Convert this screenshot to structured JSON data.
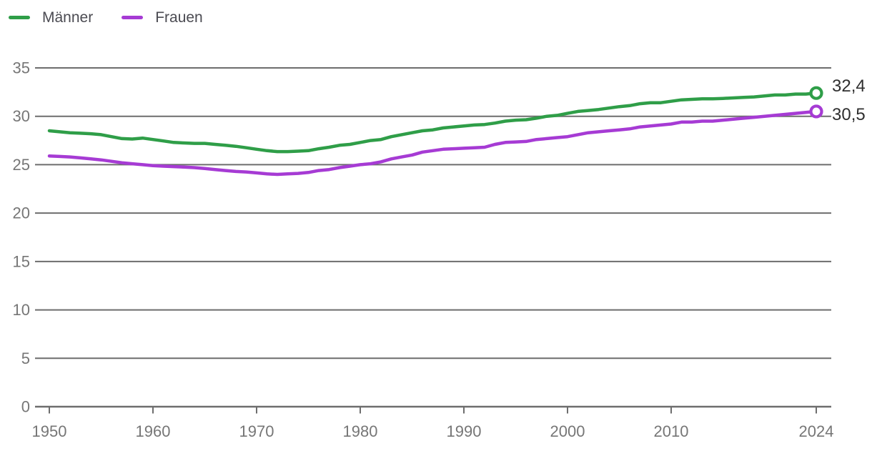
{
  "legend": {
    "items": [
      {
        "label": "Männer",
        "color": "#2f9e48"
      },
      {
        "label": "Frauen",
        "color": "#a63bd4"
      }
    ]
  },
  "end_labels": {
    "maenner": "32,4",
    "frauen": "30,5"
  },
  "colors": {
    "maenner_line": "#2f9e48",
    "frauen_line": "#a63bd4",
    "gridline": "#6d6d6d",
    "axis_line": "#6d6d6d",
    "tick_label": "#767676",
    "end_label": "#2f2f2f"
  },
  "chart_data": {
    "type": "line",
    "title": "",
    "xlabel": "",
    "ylabel": "",
    "xlim": [
      1950,
      2024
    ],
    "ylim": [
      0,
      35
    ],
    "grid": "horizontal",
    "legend_position": "top-left",
    "x_ticks": [
      1950,
      1960,
      1970,
      1980,
      1990,
      2000,
      2010,
      2024
    ],
    "y_ticks": [
      0,
      5,
      10,
      15,
      20,
      25,
      30,
      35
    ],
    "x": [
      1950,
      1951,
      1952,
      1953,
      1954,
      1955,
      1956,
      1957,
      1958,
      1959,
      1960,
      1961,
      1962,
      1963,
      1964,
      1965,
      1966,
      1967,
      1968,
      1969,
      1970,
      1971,
      1972,
      1973,
      1974,
      1975,
      1976,
      1977,
      1978,
      1979,
      1980,
      1981,
      1982,
      1983,
      1984,
      1985,
      1986,
      1987,
      1988,
      1989,
      1990,
      1991,
      1992,
      1993,
      1994,
      1995,
      1996,
      1997,
      1998,
      1999,
      2000,
      2001,
      2002,
      2003,
      2004,
      2005,
      2006,
      2007,
      2008,
      2009,
      2010,
      2011,
      2012,
      2013,
      2014,
      2015,
      2016,
      2017,
      2018,
      2019,
      2020,
      2021,
      2022,
      2023,
      2024
    ],
    "series": [
      {
        "name": "Männer",
        "color": "#2f9e48",
        "end_label": "32,4",
        "values": [
          28.5,
          28.4,
          28.3,
          28.25,
          28.2,
          28.1,
          27.9,
          27.7,
          27.65,
          27.75,
          27.6,
          27.45,
          27.3,
          27.25,
          27.2,
          27.2,
          27.1,
          27.0,
          26.9,
          26.75,
          26.6,
          26.45,
          26.35,
          26.35,
          26.4,
          26.45,
          26.65,
          26.8,
          27.0,
          27.1,
          27.3,
          27.5,
          27.6,
          27.9,
          28.1,
          28.3,
          28.5,
          28.6,
          28.8,
          28.9,
          29.0,
          29.1,
          29.15,
          29.3,
          29.5,
          29.6,
          29.65,
          29.8,
          30.0,
          30.1,
          30.3,
          30.5,
          30.6,
          30.7,
          30.85,
          31.0,
          31.1,
          31.3,
          31.4,
          31.4,
          31.55,
          31.7,
          31.75,
          31.8,
          31.8,
          31.85,
          31.9,
          31.95,
          32.0,
          32.1,
          32.2,
          32.2,
          32.3,
          32.3,
          32.4
        ]
      },
      {
        "name": "Frauen",
        "color": "#a63bd4",
        "end_label": "30,5",
        "values": [
          25.9,
          25.85,
          25.8,
          25.7,
          25.6,
          25.5,
          25.35,
          25.2,
          25.1,
          25.0,
          24.9,
          24.85,
          24.8,
          24.75,
          24.7,
          24.6,
          24.5,
          24.4,
          24.3,
          24.25,
          24.15,
          24.05,
          24.0,
          24.05,
          24.1,
          24.2,
          24.4,
          24.5,
          24.7,
          24.85,
          25.0,
          25.1,
          25.3,
          25.6,
          25.8,
          26.0,
          26.3,
          26.45,
          26.6,
          26.65,
          26.7,
          26.75,
          26.8,
          27.1,
          27.3,
          27.35,
          27.4,
          27.6,
          27.7,
          27.8,
          27.9,
          28.1,
          28.3,
          28.4,
          28.5,
          28.6,
          28.7,
          28.9,
          29.0,
          29.1,
          29.2,
          29.4,
          29.4,
          29.5,
          29.5,
          29.6,
          29.7,
          29.8,
          29.9,
          30.0,
          30.1,
          30.2,
          30.3,
          30.4,
          30.5
        ]
      }
    ]
  }
}
